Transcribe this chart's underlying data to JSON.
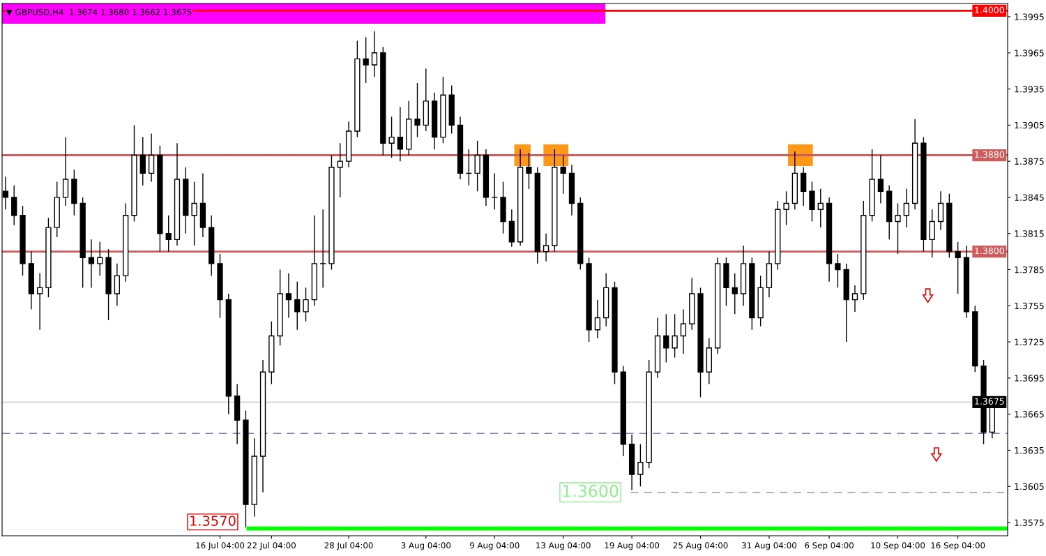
{
  "chart_data": {
    "type": "candlestick",
    "title": "▼ GBPUSD,H4  1.3674 1.3680 1.3662 1.3675",
    "categories": [
      null,
      null,
      null,
      null,
      null,
      null,
      null,
      null,
      null,
      null,
      null,
      null,
      null,
      null,
      null,
      null,
      null,
      null,
      null,
      null,
      null,
      null,
      null,
      null,
      null,
      "16 Jul 04:00",
      null,
      null,
      null,
      null,
      null,
      "22 Jul 04:00",
      null,
      null,
      null,
      null,
      null,
      null,
      null,
      null,
      "28 Jul 04:00",
      null,
      null,
      null,
      null,
      null,
      null,
      null,
      null,
      "3 Aug 04:00",
      null,
      null,
      null,
      null,
      null,
      null,
      null,
      "9 Aug 04:00",
      null,
      null,
      null,
      null,
      null,
      null,
      null,
      "13 Aug 04:00",
      null,
      null,
      null,
      null,
      null,
      null,
      null,
      "19 Aug 04:00",
      null,
      null,
      null,
      null,
      null,
      null,
      null,
      "25 Aug 04:00",
      null,
      null,
      null,
      null,
      null,
      null,
      null,
      "31 Aug 04:00",
      null,
      null,
      null,
      null,
      null,
      null,
      "6 Sep 04:00",
      null,
      null,
      null,
      null,
      null,
      null,
      null,
      "10 Sep 04:00",
      null,
      null,
      null,
      null,
      null,
      null,
      "16 Sep 04:00",
      null,
      null,
      null,
      null
    ],
    "ohlc": [
      [
        1.385,
        1.3862,
        1.3835,
        1.3845
      ],
      [
        1.3845,
        1.3855,
        1.3822,
        1.383
      ],
      [
        1.383,
        1.3838,
        1.378,
        1.379
      ],
      [
        1.379,
        1.38,
        1.3752,
        1.3765
      ],
      [
        1.3765,
        1.3782,
        1.3735,
        1.377
      ],
      [
        1.377,
        1.3828,
        1.3762,
        1.382
      ],
      [
        1.382,
        1.3858,
        1.3812,
        1.3845
      ],
      [
        1.3845,
        1.3895,
        1.3838,
        1.386
      ],
      [
        1.386,
        1.3868,
        1.383,
        1.384
      ],
      [
        1.384,
        1.3845,
        1.377,
        1.3795
      ],
      [
        1.3795,
        1.381,
        1.377,
        1.379
      ],
      [
        1.379,
        1.3808,
        1.378,
        1.3795
      ],
      [
        1.3795,
        1.3802,
        1.3743,
        1.3765
      ],
      [
        1.3765,
        1.379,
        1.3755,
        1.378
      ],
      [
        1.378,
        1.384,
        1.3775,
        1.383
      ],
      [
        1.383,
        1.3905,
        1.3825,
        1.388
      ],
      [
        1.388,
        1.3895,
        1.3855,
        1.3865
      ],
      [
        1.3865,
        1.3898,
        1.3858,
        1.388
      ],
      [
        1.388,
        1.3888,
        1.38,
        1.3815
      ],
      [
        1.3815,
        1.383,
        1.38,
        1.381
      ],
      [
        1.381,
        1.389,
        1.3805,
        1.386
      ],
      [
        1.386,
        1.387,
        1.3815,
        1.383
      ],
      [
        1.383,
        1.3858,
        1.3805,
        1.384
      ],
      [
        1.384,
        1.3865,
        1.3812,
        1.382
      ],
      [
        1.382,
        1.383,
        1.378,
        1.379
      ],
      [
        1.379,
        1.3798,
        1.3745,
        1.376
      ],
      [
        1.376,
        1.3765,
        1.3665,
        1.368
      ],
      [
        1.368,
        1.369,
        1.364,
        1.366
      ],
      [
        1.366,
        1.3668,
        1.3571,
        1.359
      ],
      [
        1.359,
        1.3645,
        1.358,
        1.363
      ],
      [
        1.363,
        1.371,
        1.36,
        1.37
      ],
      [
        1.37,
        1.3742,
        1.369,
        1.373
      ],
      [
        1.373,
        1.3785,
        1.3722,
        1.3765
      ],
      [
        1.3765,
        1.3782,
        1.3745,
        1.376
      ],
      [
        1.376,
        1.3775,
        1.3735,
        1.375
      ],
      [
        1.375,
        1.377,
        1.3742,
        1.376
      ],
      [
        1.376,
        1.383,
        1.3755,
        1.379
      ],
      [
        1.379,
        1.3835,
        1.377,
        1.379
      ],
      [
        1.379,
        1.388,
        1.3785,
        1.387
      ],
      [
        1.387,
        1.389,
        1.3845,
        1.3875
      ],
      [
        1.3875,
        1.3908,
        1.387,
        1.39
      ],
      [
        1.39,
        1.3975,
        1.3895,
        1.396
      ],
      [
        1.396,
        1.3978,
        1.394,
        1.3955
      ],
      [
        1.3955,
        1.3983,
        1.3945,
        1.3965
      ],
      [
        1.3965,
        1.397,
        1.388,
        1.389
      ],
      [
        1.389,
        1.3912,
        1.3878,
        1.3895
      ],
      [
        1.3895,
        1.392,
        1.3875,
        1.3885
      ],
      [
        1.3885,
        1.3925,
        1.388,
        1.391
      ],
      [
        1.391,
        1.394,
        1.3895,
        1.3905
      ],
      [
        1.3905,
        1.3952,
        1.39,
        1.3925
      ],
      [
        1.3925,
        1.3932,
        1.3885,
        1.3895
      ],
      [
        1.3895,
        1.3945,
        1.389,
        1.393
      ],
      [
        1.393,
        1.3938,
        1.3898,
        1.3905
      ],
      [
        1.3905,
        1.3912,
        1.386,
        1.3865
      ],
      [
        1.3865,
        1.3885,
        1.3855,
        1.3865
      ],
      [
        1.3865,
        1.3892,
        1.385,
        1.388
      ],
      [
        1.388,
        1.3885,
        1.3838,
        1.3845
      ],
      [
        1.3845,
        1.3865,
        1.3835,
        1.3845
      ],
      [
        1.3845,
        1.3858,
        1.3815,
        1.3825
      ],
      [
        1.3825,
        1.3835,
        1.3804,
        1.3808
      ],
      [
        1.3808,
        1.3885,
        1.3805,
        1.387
      ],
      [
        1.387,
        1.3882,
        1.3852,
        1.3865
      ],
      [
        1.3865,
        1.387,
        1.379,
        1.38
      ],
      [
        1.38,
        1.3815,
        1.3792,
        1.3805
      ],
      [
        1.3805,
        1.3885,
        1.38,
        1.387
      ],
      [
        1.387,
        1.388,
        1.3848,
        1.3865
      ],
      [
        1.3865,
        1.3872,
        1.383,
        1.384
      ],
      [
        1.384,
        1.3845,
        1.3785,
        1.379
      ],
      [
        1.379,
        1.3795,
        1.3725,
        1.3735
      ],
      [
        1.3735,
        1.376,
        1.3728,
        1.3745
      ],
      [
        1.3745,
        1.3782,
        1.3738,
        1.377
      ],
      [
        1.377,
        1.3775,
        1.369,
        1.37
      ],
      [
        1.37,
        1.3705,
        1.363,
        1.364
      ],
      [
        1.364,
        1.3648,
        1.3602,
        1.3615
      ],
      [
        1.3615,
        1.364,
        1.3605,
        1.3625
      ],
      [
        1.3625,
        1.371,
        1.362,
        1.37
      ],
      [
        1.37,
        1.3745,
        1.3695,
        1.373
      ],
      [
        1.373,
        1.3748,
        1.3708,
        1.372
      ],
      [
        1.372,
        1.3748,
        1.3712,
        1.373
      ],
      [
        1.373,
        1.3752,
        1.3715,
        1.374
      ],
      [
        1.374,
        1.3778,
        1.3735,
        1.3765
      ],
      [
        1.3765,
        1.377,
        1.3679,
        1.37
      ],
      [
        1.37,
        1.3728,
        1.369,
        1.372
      ],
      [
        1.372,
        1.3795,
        1.3715,
        1.379
      ],
      [
        1.379,
        1.3795,
        1.3755,
        1.377
      ],
      [
        1.377,
        1.3782,
        1.3748,
        1.3765
      ],
      [
        1.3765,
        1.3805,
        1.3755,
        1.379
      ],
      [
        1.379,
        1.3795,
        1.3735,
        1.3745
      ],
      [
        1.3745,
        1.378,
        1.3738,
        1.377
      ],
      [
        1.377,
        1.38,
        1.3762,
        1.379
      ],
      [
        1.379,
        1.3842,
        1.3785,
        1.3835
      ],
      [
        1.3835,
        1.385,
        1.3822,
        1.384
      ],
      [
        1.384,
        1.3883,
        1.3835,
        1.3865
      ],
      [
        1.3865,
        1.387,
        1.3838,
        1.385
      ],
      [
        1.385,
        1.3858,
        1.3825,
        1.3835
      ],
      [
        1.3835,
        1.3852,
        1.382,
        1.384
      ],
      [
        1.384,
        1.3845,
        1.3775,
        1.379
      ],
      [
        1.379,
        1.3798,
        1.377,
        1.3785
      ],
      [
        1.3785,
        1.379,
        1.3725,
        1.376
      ],
      [
        1.376,
        1.3772,
        1.375,
        1.3765
      ],
      [
        1.3765,
        1.3842,
        1.376,
        1.383
      ],
      [
        1.383,
        1.3885,
        1.3825,
        1.386
      ],
      [
        1.386,
        1.388,
        1.384,
        1.385
      ],
      [
        1.385,
        1.3855,
        1.381,
        1.3825
      ],
      [
        1.3825,
        1.384,
        1.3798,
        1.383
      ],
      [
        1.383,
        1.3852,
        1.382,
        1.384
      ],
      [
        1.384,
        1.391,
        1.3835,
        1.389
      ],
      [
        1.389,
        1.3895,
        1.38,
        1.381
      ],
      [
        1.381,
        1.3835,
        1.3795,
        1.3825
      ],
      [
        1.3825,
        1.385,
        1.3818,
        1.384
      ],
      [
        1.384,
        1.3848,
        1.3795,
        1.38
      ],
      [
        1.38,
        1.3808,
        1.3765,
        1.3795
      ],
      [
        1.3795,
        1.3805,
        1.3745,
        1.375
      ],
      [
        1.375,
        1.3755,
        1.37,
        1.3705
      ],
      [
        1.3705,
        1.371,
        1.364,
        1.365
      ],
      [
        1.365,
        1.368,
        1.3645,
        1.3675
      ]
    ],
    "ylim": [
      1.3564,
      1.4006
    ],
    "yticks": [
      1.3575,
      1.3605,
      1.3635,
      1.3665,
      1.3695,
      1.3725,
      1.3755,
      1.3785,
      1.3815,
      1.3845,
      1.3875,
      1.3905,
      1.3935,
      1.3965,
      1.3995
    ],
    "ref_lines": [
      {
        "axis": "y",
        "value": 1.4,
        "label": "1.4000",
        "color": "#ff0000",
        "line_style": "solid"
      },
      {
        "axis": "y",
        "value": 1.388,
        "label": "1.3880",
        "color": "#cd5c5c",
        "line_style": "solid"
      },
      {
        "axis": "y",
        "value": 1.38,
        "label": "1.3800",
        "color": "#cd5c5c",
        "line_style": "solid"
      },
      {
        "axis": "y",
        "value": 1.3675,
        "label": "1.3675",
        "color": "#c0c0c0",
        "line_style": "solid"
      },
      {
        "axis": "y",
        "value": 1.357,
        "label": "1.3570",
        "color": "#00ff00",
        "line_style": "solid"
      },
      {
        "axis": "y",
        "value": 1.36,
        "label": "1.3600",
        "color": "#8080b0",
        "line_style": "dashed"
      },
      {
        "axis": "y",
        "value": 1.3649,
        "color": "#8080b0",
        "line_style": "dashed"
      }
    ],
    "grid": false,
    "legend": false
  }
}
